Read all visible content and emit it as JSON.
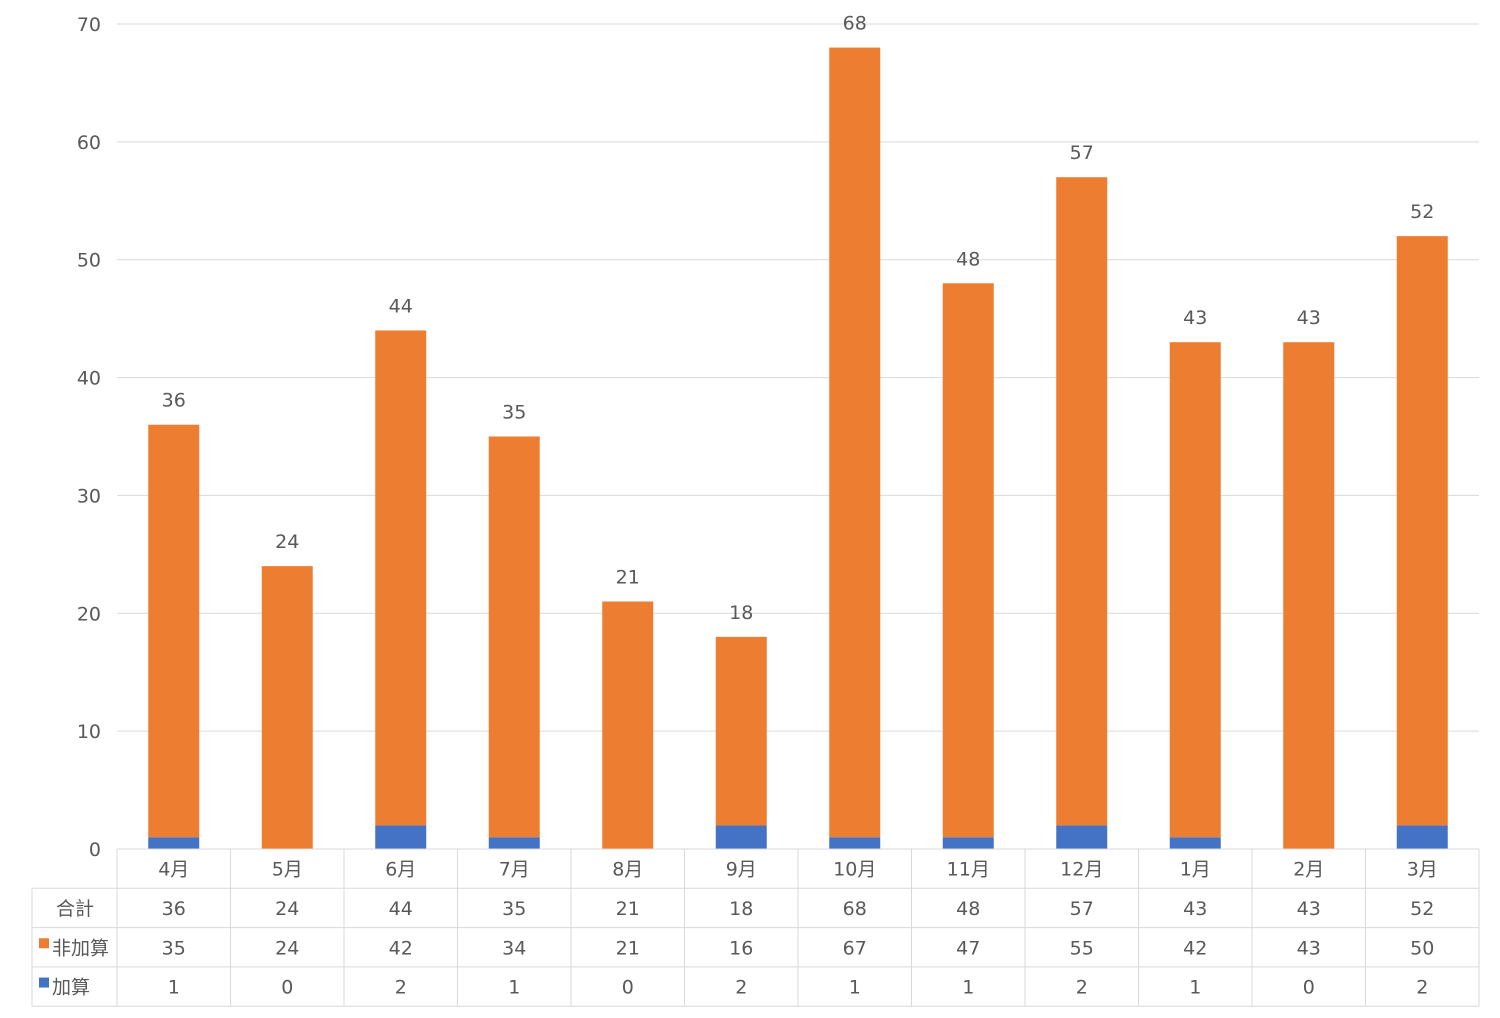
{
  "chart_data": {
    "type": "bar",
    "stacked": true,
    "categories": [
      "4月",
      "5月",
      "6月",
      "7月",
      "8月",
      "9月",
      "10月",
      "11月",
      "12月",
      "1月",
      "2月",
      "3月"
    ],
    "series": [
      {
        "name": "加算",
        "color": "#4472C4",
        "values": [
          1,
          0,
          2,
          1,
          0,
          2,
          1,
          1,
          2,
          1,
          0,
          2
        ]
      },
      {
        "name": "非加算",
        "color": "#ED7D31",
        "values": [
          35,
          24,
          42,
          34,
          21,
          16,
          67,
          47,
          55,
          42,
          43,
          50
        ]
      }
    ],
    "totals_label": "合計",
    "totals": [
      36,
      24,
      44,
      35,
      21,
      18,
      68,
      48,
      57,
      43,
      43,
      52
    ],
    "ylim": [
      0,
      70
    ],
    "yticks": [
      0,
      10,
      20,
      30,
      40,
      50,
      60,
      70
    ],
    "grid": true,
    "legend": "data-table",
    "gridline_color": "#D9D9D9",
    "text_color": "#595959"
  }
}
